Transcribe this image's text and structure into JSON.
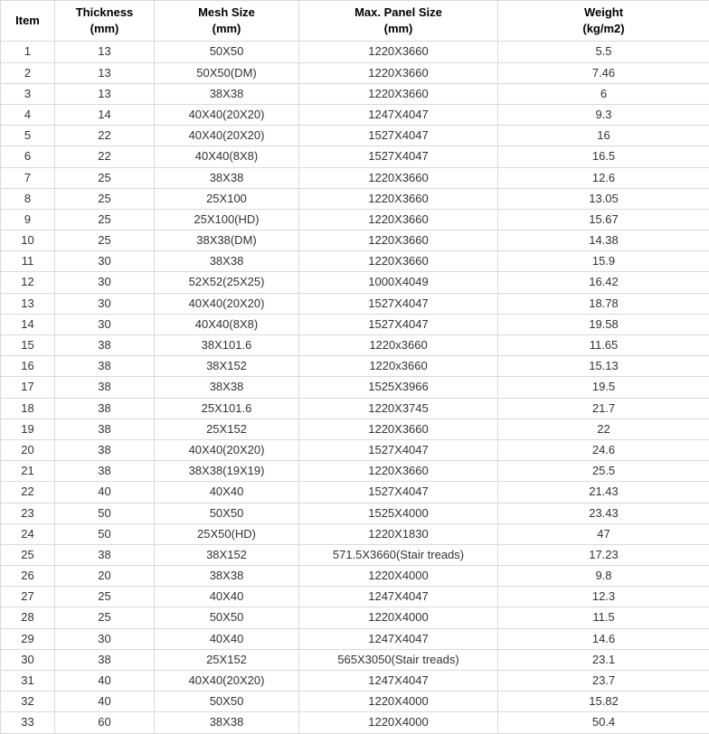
{
  "table": {
    "headers": {
      "item": "Item",
      "thickness_label": "Thickness",
      "thickness_unit": "(mm)",
      "mesh_label": "Mesh Size",
      "mesh_unit": "(mm)",
      "panel_label": "Max. Panel Size",
      "panel_unit": "(mm)",
      "weight_label": "Weight",
      "weight_unit": "(kg/m2)"
    },
    "rows": [
      {
        "item": "1",
        "thickness": "13",
        "mesh": "50X50",
        "panel": "1220X3660",
        "weight": "5.5"
      },
      {
        "item": "2",
        "thickness": "13",
        "mesh": "50X50(DM)",
        "panel": "1220X3660",
        "weight": "7.46"
      },
      {
        "item": "3",
        "thickness": "13",
        "mesh": "38X38",
        "panel": "1220X3660",
        "weight": "6"
      },
      {
        "item": "4",
        "thickness": "14",
        "mesh": "40X40(20X20)",
        "panel": "1247X4047",
        "weight": "9.3"
      },
      {
        "item": "5",
        "thickness": "22",
        "mesh": "40X40(20X20)",
        "panel": "1527X4047",
        "weight": "16"
      },
      {
        "item": "6",
        "thickness": "22",
        "mesh": "40X40(8X8)",
        "panel": "1527X4047",
        "weight": "16.5"
      },
      {
        "item": "7",
        "thickness": "25",
        "mesh": "38X38",
        "panel": "1220X3660",
        "weight": "12.6"
      },
      {
        "item": "8",
        "thickness": "25",
        "mesh": "25X100",
        "panel": "1220X3660",
        "weight": "13.05"
      },
      {
        "item": "9",
        "thickness": "25",
        "mesh": "25X100(HD)",
        "panel": "1220X3660",
        "weight": "15.67"
      },
      {
        "item": "10",
        "thickness": "25",
        "mesh": "38X38(DM)",
        "panel": "1220X3660",
        "weight": "14.38"
      },
      {
        "item": "11",
        "thickness": "30",
        "mesh": "38X38",
        "panel": "1220X3660",
        "weight": "15.9"
      },
      {
        "item": "12",
        "thickness": "30",
        "mesh": "52X52(25X25)",
        "panel": "1000X4049",
        "weight": "16.42"
      },
      {
        "item": "13",
        "thickness": "30",
        "mesh": "40X40(20X20)",
        "panel": "1527X4047",
        "weight": "18.78"
      },
      {
        "item": "14",
        "thickness": "30",
        "mesh": "40X40(8X8)",
        "panel": "1527X4047",
        "weight": "19.58"
      },
      {
        "item": "15",
        "thickness": "38",
        "mesh": "38X101.6",
        "panel": "1220x3660",
        "weight": "11.65"
      },
      {
        "item": "16",
        "thickness": "38",
        "mesh": "38X152",
        "panel": "1220x3660",
        "weight": "15.13"
      },
      {
        "item": "17",
        "thickness": "38",
        "mesh": "38X38",
        "panel": "1525X3966",
        "weight": "19.5"
      },
      {
        "item": "18",
        "thickness": "38",
        "mesh": "25X101.6",
        "panel": "1220X3745",
        "weight": "21.7"
      },
      {
        "item": "19",
        "thickness": "38",
        "mesh": "25X152",
        "panel": "1220X3660",
        "weight": "22"
      },
      {
        "item": "20",
        "thickness": "38",
        "mesh": "40X40(20X20)",
        "panel": "1527X4047",
        "weight": "24.6"
      },
      {
        "item": "21",
        "thickness": "38",
        "mesh": "38X38(19X19)",
        "panel": "1220X3660",
        "weight": "25.5"
      },
      {
        "item": "22",
        "thickness": "40",
        "mesh": "40X40",
        "panel": "1527X4047",
        "weight": "21.43"
      },
      {
        "item": "23",
        "thickness": "50",
        "mesh": "50X50",
        "panel": "1525X4000",
        "weight": "23.43"
      },
      {
        "item": "24",
        "thickness": "50",
        "mesh": "25X50(HD)",
        "panel": "1220X1830",
        "weight": "47"
      },
      {
        "item": "25",
        "thickness": "38",
        "mesh": "38X152",
        "panel": "571.5X3660(Stair treads)",
        "weight": "17.23"
      },
      {
        "item": "26",
        "thickness": "20",
        "mesh": "38X38",
        "panel": "1220X4000",
        "weight": "9.8"
      },
      {
        "item": "27",
        "thickness": "25",
        "mesh": "40X40",
        "panel": "1247X4047",
        "weight": "12.3"
      },
      {
        "item": "28",
        "thickness": "25",
        "mesh": "50X50",
        "panel": "1220X4000",
        "weight": "11.5"
      },
      {
        "item": "29",
        "thickness": "30",
        "mesh": "40X40",
        "panel": "1247X4047",
        "weight": "14.6"
      },
      {
        "item": "30",
        "thickness": "38",
        "mesh": "25X152",
        "panel": "565X3050(Stair treads)",
        "weight": "23.1"
      },
      {
        "item": "31",
        "thickness": "40",
        "mesh": "40X40(20X20)",
        "panel": "1247X4047",
        "weight": "23.7"
      },
      {
        "item": "32",
        "thickness": "40",
        "mesh": "50X50",
        "panel": "1220X4000",
        "weight": "15.82"
      },
      {
        "item": "33",
        "thickness": "60",
        "mesh": "38X38",
        "panel": "1220X4000",
        "weight": "50.4"
      }
    ],
    "styles": {
      "border_color": "#d9d9d9",
      "background_color": "#ffffff",
      "header_text_color": "#000000",
      "body_text_color": "#333333",
      "font_size": 13,
      "header_font_weight": "bold",
      "column_widths": {
        "item": 60,
        "thickness": 110,
        "mesh": 160,
        "panel": 220,
        "weight": 234
      }
    }
  }
}
